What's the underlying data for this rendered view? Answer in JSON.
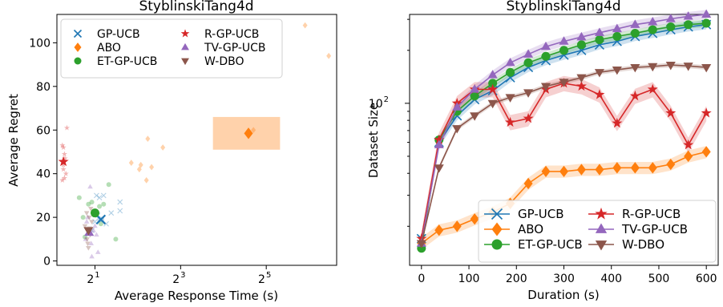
{
  "colors": {
    "gp_ucb": "#1f77b4",
    "abo": "#ff7f0e",
    "et_gp_ucb": "#2ca02c",
    "r_gp_ucb": "#d62728",
    "tv_gp_ucb": "#9467bd",
    "w_dbo": "#8c564b"
  },
  "chart_data": [
    {
      "type": "scatter",
      "title": "StyblinskiTang4d",
      "xlabel": "Average Response Time (s)",
      "ylabel": "Average Regret",
      "xscale": "log2",
      "xlim": [
        1.08,
        100
      ],
      "ylim": [
        -2,
        113
      ],
      "xticks": [
        {
          "base": "2",
          "exp": "1",
          "value": 2
        },
        {
          "base": "2",
          "exp": "3",
          "value": 8
        },
        {
          "base": "2",
          "exp": "5",
          "value": 32
        }
      ],
      "yticks": [
        "0",
        "20",
        "40",
        "60",
        "80",
        "100"
      ],
      "legend_position": "top-left",
      "series": [
        {
          "name": "GP-UCB",
          "color": "#1f77b4",
          "marker": "x",
          "mean": [
            2.2,
            19
          ],
          "std": [
            [
              0.12,
              1.2
            ]
          ],
          "points": [
            [
              2.05,
              30
            ],
            [
              2.15,
              29
            ],
            [
              2.3,
              30
            ],
            [
              2.0,
              18
            ],
            [
              2.4,
              17
            ],
            [
              2.6,
              22
            ],
            [
              3.0,
              27
            ],
            [
              3.0,
              23
            ],
            [
              1.9,
              14
            ],
            [
              2.1,
              21
            ]
          ]
        },
        {
          "name": "ABO",
          "color": "#ff7f0e",
          "marker": "diamond",
          "mean": [
            24,
            58.5
          ],
          "std": [
            [
              [
                13.5,
                40
              ],
              [
                51,
                66
              ]
            ]
          ],
          "points": [
            [
              3.6,
              45
            ],
            [
              4.1,
              42
            ],
            [
              4.2,
              44
            ],
            [
              4.6,
              37
            ],
            [
              4.7,
              56
            ],
            [
              5.0,
              43
            ],
            [
              6.0,
              52
            ],
            [
              26,
              60
            ],
            [
              60,
              108
            ],
            [
              88,
              94
            ]
          ]
        },
        {
          "name": "ET-GP-UCB",
          "color": "#2ca02c",
          "marker": "circle",
          "mean": [
            2.0,
            22
          ],
          "points": [
            [
              1.55,
              29
            ],
            [
              1.65,
              20
            ],
            [
              1.7,
              11
            ],
            [
              1.8,
              26
            ],
            [
              1.9,
              27
            ],
            [
              2.15,
              25
            ],
            [
              2.3,
              26
            ],
            [
              2.5,
              35
            ],
            [
              2.8,
              10
            ],
            [
              2.2,
              17
            ]
          ]
        },
        {
          "name": "R-GP-UCB",
          "color": "#d62728",
          "marker": "star",
          "mean": [
            1.2,
            45.5
          ],
          "points": [
            [
              1.18,
              53
            ],
            [
              1.2,
              52
            ],
            [
              1.22,
              49
            ],
            [
              1.2,
              42
            ],
            [
              1.22,
              38
            ],
            [
              1.18,
              37
            ],
            [
              1.25,
              40
            ],
            [
              1.27,
              61
            ],
            [
              1.2,
              44
            ],
            [
              1.23,
              47
            ]
          ]
        },
        {
          "name": "TV-GP-UCB",
          "color": "#9467bd",
          "marker": "triangle",
          "mean": [
            1.82,
            13
          ],
          "points": [
            [
              1.85,
              34
            ],
            [
              1.78,
              20
            ],
            [
              1.72,
              10
            ],
            [
              1.95,
              14
            ],
            [
              2.1,
              4
            ],
            [
              1.9,
              2
            ],
            [
              2.05,
              12
            ],
            [
              1.75,
              18
            ],
            [
              1.88,
              8
            ],
            [
              2.0,
              16
            ]
          ]
        },
        {
          "name": "W-DBO",
          "color": "#8c564b",
          "marker": "triangle-down",
          "mean": [
            1.8,
            14
          ],
          "points": [
            [
              1.75,
              22
            ],
            [
              1.82,
              20
            ],
            [
              1.78,
              8
            ],
            [
              1.85,
              12
            ],
            [
              1.7,
              16
            ],
            [
              1.8,
              6
            ],
            [
              1.9,
              18
            ],
            [
              1.76,
              10
            ],
            [
              1.83,
              15
            ],
            [
              1.87,
              24
            ]
          ]
        }
      ]
    },
    {
      "type": "line",
      "title": "StyblinskiTang4d",
      "xlabel": "Duration (s)",
      "ylabel": "Dataset Size",
      "yscale": "log",
      "xlim": [
        -25,
        625
      ],
      "ylim": [
        12,
        320
      ],
      "xticks": [
        "0",
        "100",
        "200",
        "300",
        "400",
        "500",
        "600"
      ],
      "ytick_major": {
        "base": "10",
        "exp": "2",
        "value": 100
      },
      "legend_position": "lower-right",
      "x": [
        0,
        37,
        75,
        112,
        150,
        187,
        225,
        262,
        300,
        337,
        375,
        412,
        450,
        487,
        525,
        562,
        600
      ],
      "series": [
        {
          "name": "GP-UCB",
          "color": "#1f77b4",
          "marker": "x",
          "band": 0.06,
          "values": [
            17,
            60,
            85,
            105,
            118,
            140,
            160,
            175,
            188,
            200,
            215,
            225,
            240,
            250,
            262,
            272,
            280
          ]
        },
        {
          "name": "ABO",
          "color": "#ff7f0e",
          "marker": "diamond",
          "band": 0.08,
          "values": [
            16,
            19,
            20,
            22,
            24,
            27,
            35,
            41,
            41,
            42,
            42,
            43,
            43,
            43,
            45,
            50,
            53
          ]
        },
        {
          "name": "ET-GP-UCB",
          "color": "#2ca02c",
          "marker": "circle",
          "band": 0.05,
          "values": [
            15,
            62,
            90,
            110,
            130,
            150,
            170,
            185,
            200,
            215,
            230,
            240,
            250,
            262,
            272,
            280,
            285
          ]
        },
        {
          "name": "R-GP-UCB",
          "color": "#d62728",
          "marker": "star",
          "band": 0.1,
          "values": [
            17,
            62,
            100,
            120,
            120,
            78,
            82,
            120,
            130,
            125,
            112,
            77,
            110,
            120,
            88,
            58,
            88
          ]
        },
        {
          "name": "TV-GP-UCB",
          "color": "#9467bd",
          "marker": "triangle",
          "band": 0.06,
          "values": [
            16,
            58,
            95,
            120,
            145,
            170,
            190,
            210,
            225,
            238,
            252,
            265,
            280,
            290,
            302,
            312,
            320
          ]
        },
        {
          "name": "W-DBO",
          "color": "#8c564b",
          "marker": "triangle-down",
          "band": 0.03,
          "values": [
            16,
            43,
            72,
            85,
            100,
            108,
            115,
            125,
            132,
            140,
            150,
            155,
            160,
            162,
            165,
            163,
            160
          ]
        }
      ]
    }
  ]
}
